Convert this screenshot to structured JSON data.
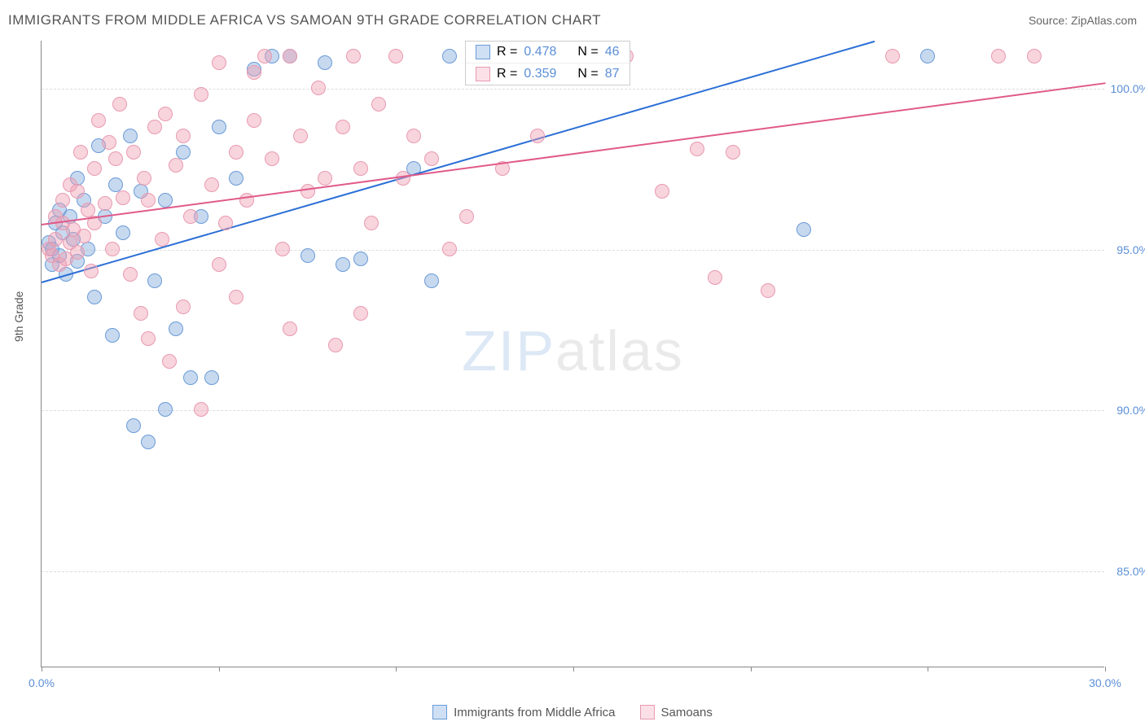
{
  "header": {
    "title": "IMMIGRANTS FROM MIDDLE AFRICA VS SAMOAN 9TH GRADE CORRELATION CHART",
    "source": "Source: ZipAtlas.com"
  },
  "chart": {
    "type": "scatter",
    "ylabel": "9th Grade",
    "xlim": [
      0,
      30
    ],
    "ylim": [
      82,
      101.5
    ],
    "xtick_positions": [
      0,
      5,
      10,
      15,
      20,
      25,
      30
    ],
    "xtick_labels": {
      "0": "0.0%",
      "30": "30.0%"
    },
    "xtick_label_color": "#5b8fd6",
    "ytick_positions": [
      85,
      90,
      95,
      100
    ],
    "ytick_labels": [
      "85.0%",
      "90.0%",
      "95.0%",
      "100.0%"
    ],
    "ytick_label_color": "#5b8fd6",
    "background_color": "#ffffff",
    "grid_color": "#dddddd",
    "watermark": {
      "zip": "ZIP",
      "atlas": "atlas"
    },
    "series": [
      {
        "name": "Immigrants from Middle Africa",
        "marker_fill": "rgba(130,170,220,0.45)",
        "marker_stroke": "#6a9bd8",
        "swatch_fill": "#cfe0f4",
        "swatch_stroke": "#6a9bd8",
        "R": "0.478",
        "N": "46",
        "trend": {
          "x1": 0,
          "y1": 94.0,
          "x2": 23.5,
          "y2": 101.5,
          "color": "#2b6fd6"
        },
        "points": [
          [
            0.2,
            95.2
          ],
          [
            0.3,
            95.0
          ],
          [
            0.3,
            94.5
          ],
          [
            0.4,
            95.8
          ],
          [
            0.5,
            94.8
          ],
          [
            0.5,
            96.2
          ],
          [
            0.6,
            95.5
          ],
          [
            0.7,
            94.2
          ],
          [
            0.8,
            96.0
          ],
          [
            0.9,
            95.3
          ],
          [
            1.0,
            97.2
          ],
          [
            1.0,
            94.6
          ],
          [
            1.2,
            96.5
          ],
          [
            1.3,
            95.0
          ],
          [
            1.5,
            93.5
          ],
          [
            1.6,
            98.2
          ],
          [
            1.8,
            96.0
          ],
          [
            2.0,
            92.3
          ],
          [
            2.1,
            97.0
          ],
          [
            2.3,
            95.5
          ],
          [
            2.5,
            98.5
          ],
          [
            2.6,
            89.5
          ],
          [
            2.8,
            96.8
          ],
          [
            3.0,
            89.0
          ],
          [
            3.2,
            94.0
          ],
          [
            3.5,
            90.0
          ],
          [
            3.5,
            96.5
          ],
          [
            3.8,
            92.5
          ],
          [
            4.0,
            98.0
          ],
          [
            4.2,
            91.0
          ],
          [
            4.5,
            96.0
          ],
          [
            4.8,
            91.0
          ],
          [
            5.0,
            98.8
          ],
          [
            5.5,
            97.2
          ],
          [
            6.0,
            100.6
          ],
          [
            6.5,
            101.0
          ],
          [
            7.0,
            101.0
          ],
          [
            7.5,
            94.8
          ],
          [
            8.0,
            100.8
          ],
          [
            8.5,
            94.5
          ],
          [
            9.0,
            94.7
          ],
          [
            10.5,
            97.5
          ],
          [
            11.0,
            94.0
          ],
          [
            11.5,
            101.0
          ],
          [
            21.5,
            95.6
          ],
          [
            25.0,
            101.0
          ]
        ]
      },
      {
        "name": "Samoans",
        "marker_fill": "rgba(240,160,180,0.45)",
        "marker_stroke": "#e89ab0",
        "swatch_fill": "#fbe0e8",
        "swatch_stroke": "#e89ab0",
        "R": "0.359",
        "N": "87",
        "trend": {
          "x1": 0,
          "y1": 95.8,
          "x2": 30,
          "y2": 100.2,
          "color": "#e05a8a"
        },
        "points": [
          [
            0.2,
            95.0
          ],
          [
            0.3,
            94.8
          ],
          [
            0.4,
            95.3
          ],
          [
            0.4,
            96.0
          ],
          [
            0.5,
            94.5
          ],
          [
            0.6,
            95.8
          ],
          [
            0.6,
            96.5
          ],
          [
            0.7,
            94.7
          ],
          [
            0.8,
            95.2
          ],
          [
            0.8,
            97.0
          ],
          [
            0.9,
            95.6
          ],
          [
            1.0,
            94.9
          ],
          [
            1.0,
            96.8
          ],
          [
            1.1,
            98.0
          ],
          [
            1.2,
            95.4
          ],
          [
            1.3,
            96.2
          ],
          [
            1.4,
            94.3
          ],
          [
            1.5,
            97.5
          ],
          [
            1.5,
            95.8
          ],
          [
            1.6,
            99.0
          ],
          [
            1.8,
            96.4
          ],
          [
            1.9,
            98.3
          ],
          [
            2.0,
            95.0
          ],
          [
            2.1,
            97.8
          ],
          [
            2.2,
            99.5
          ],
          [
            2.3,
            96.6
          ],
          [
            2.5,
            94.2
          ],
          [
            2.6,
            98.0
          ],
          [
            2.8,
            93.0
          ],
          [
            2.9,
            97.2
          ],
          [
            3.0,
            92.2
          ],
          [
            3.0,
            96.5
          ],
          [
            3.2,
            98.8
          ],
          [
            3.4,
            95.3
          ],
          [
            3.5,
            99.2
          ],
          [
            3.6,
            91.5
          ],
          [
            3.8,
            97.6
          ],
          [
            4.0,
            93.2
          ],
          [
            4.0,
            98.5
          ],
          [
            4.2,
            96.0
          ],
          [
            4.5,
            90.0
          ],
          [
            4.5,
            99.8
          ],
          [
            4.8,
            97.0
          ],
          [
            5.0,
            94.5
          ],
          [
            5.0,
            100.8
          ],
          [
            5.2,
            95.8
          ],
          [
            5.5,
            93.5
          ],
          [
            5.5,
            98.0
          ],
          [
            5.8,
            96.5
          ],
          [
            6.0,
            100.5
          ],
          [
            6.0,
            99.0
          ],
          [
            6.3,
            101.0
          ],
          [
            6.5,
            97.8
          ],
          [
            6.8,
            95.0
          ],
          [
            7.0,
            101.0
          ],
          [
            7.0,
            92.5
          ],
          [
            7.3,
            98.5
          ],
          [
            7.5,
            96.8
          ],
          [
            7.8,
            100.0
          ],
          [
            8.0,
            97.2
          ],
          [
            8.3,
            92.0
          ],
          [
            8.5,
            98.8
          ],
          [
            8.8,
            101.0
          ],
          [
            9.0,
            93.0
          ],
          [
            9.0,
            97.5
          ],
          [
            9.3,
            95.8
          ],
          [
            9.5,
            99.5
          ],
          [
            10.0,
            101.0
          ],
          [
            10.2,
            97.2
          ],
          [
            10.5,
            98.5
          ],
          [
            11.0,
            97.8
          ],
          [
            11.5,
            95.0
          ],
          [
            12.0,
            96.0
          ],
          [
            12.5,
            101.0
          ],
          [
            13.0,
            97.5
          ],
          [
            13.5,
            101.0
          ],
          [
            14.0,
            98.5
          ],
          [
            15.5,
            101.0
          ],
          [
            16.5,
            101.0
          ],
          [
            17.5,
            96.8
          ],
          [
            18.5,
            98.1
          ],
          [
            19.0,
            94.1
          ],
          [
            19.5,
            98.0
          ],
          [
            20.5,
            93.7
          ],
          [
            24.0,
            101.0
          ],
          [
            27.0,
            101.0
          ],
          [
            28.0,
            101.0
          ]
        ]
      }
    ],
    "legend_top": {
      "r_label": "R =",
      "n_label": "N =",
      "text_color": "#555",
      "value_color": "#5b8fd6"
    },
    "legend_bottom": {
      "text_color": "#555"
    }
  }
}
